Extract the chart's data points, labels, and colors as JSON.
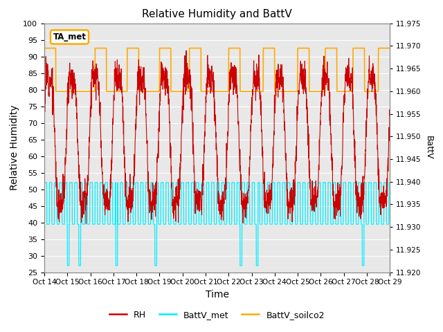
{
  "title": "Relative Humidity and BattV",
  "xlabel": "Time",
  "ylabel_left": "Relative Humidity",
  "ylabel_right": "BattV",
  "ylim_left": [
    25,
    100
  ],
  "ylim_right": [
    11.92,
    11.975
  ],
  "yticks_left": [
    25,
    30,
    35,
    40,
    45,
    50,
    55,
    60,
    65,
    70,
    75,
    80,
    85,
    90,
    95,
    100
  ],
  "yticks_right": [
    11.92,
    11.925,
    11.93,
    11.935,
    11.94,
    11.945,
    11.95,
    11.955,
    11.96,
    11.965,
    11.97,
    11.975
  ],
  "xtick_labels": [
    "Oct 14",
    "Oct 15",
    "Oct 16",
    "Oct 17",
    "Oct 18",
    "Oct 19",
    "Oct 20",
    "Oct 21",
    "Oct 22",
    "Oct 23",
    "Oct 24",
    "Oct 25",
    "Oct 26",
    "Oct 27",
    "Oct 28",
    "Oct 29"
  ],
  "bg_color": "#e8e8e8",
  "grid_color": "#ffffff",
  "color_RH": "#cc0000",
  "color_BattV_met": "#00eeff",
  "color_BattV_soilco2": "#ffaa00",
  "annotation_box": "TA_met",
  "annotation_color": "#ffaa00",
  "figsize": [
    6.4,
    4.8
  ],
  "dpi": 100,
  "rh_seed": 12,
  "soil_high_ranges": [
    [
      0.0,
      0.5
    ],
    [
      2.2,
      2.7
    ],
    [
      3.6,
      4.1
    ],
    [
      5.0,
      5.5
    ],
    [
      6.3,
      6.8
    ],
    [
      8.0,
      8.5
    ],
    [
      9.5,
      10.0
    ],
    [
      11.0,
      11.5
    ],
    [
      12.2,
      12.7
    ],
    [
      13.4,
      13.9
    ],
    [
      14.5,
      15.0
    ]
  ],
  "soil_low": 79.5,
  "soil_high": 92.5,
  "met_low": 39.5,
  "met_high": 52.0,
  "met_period": 0.22,
  "met_duty": 0.5,
  "met_spike_positions": [
    1.0,
    1.5,
    3.1,
    4.8,
    8.5,
    9.2,
    13.8
  ],
  "met_spike_value": 27.0,
  "rh_n_points": 2000
}
